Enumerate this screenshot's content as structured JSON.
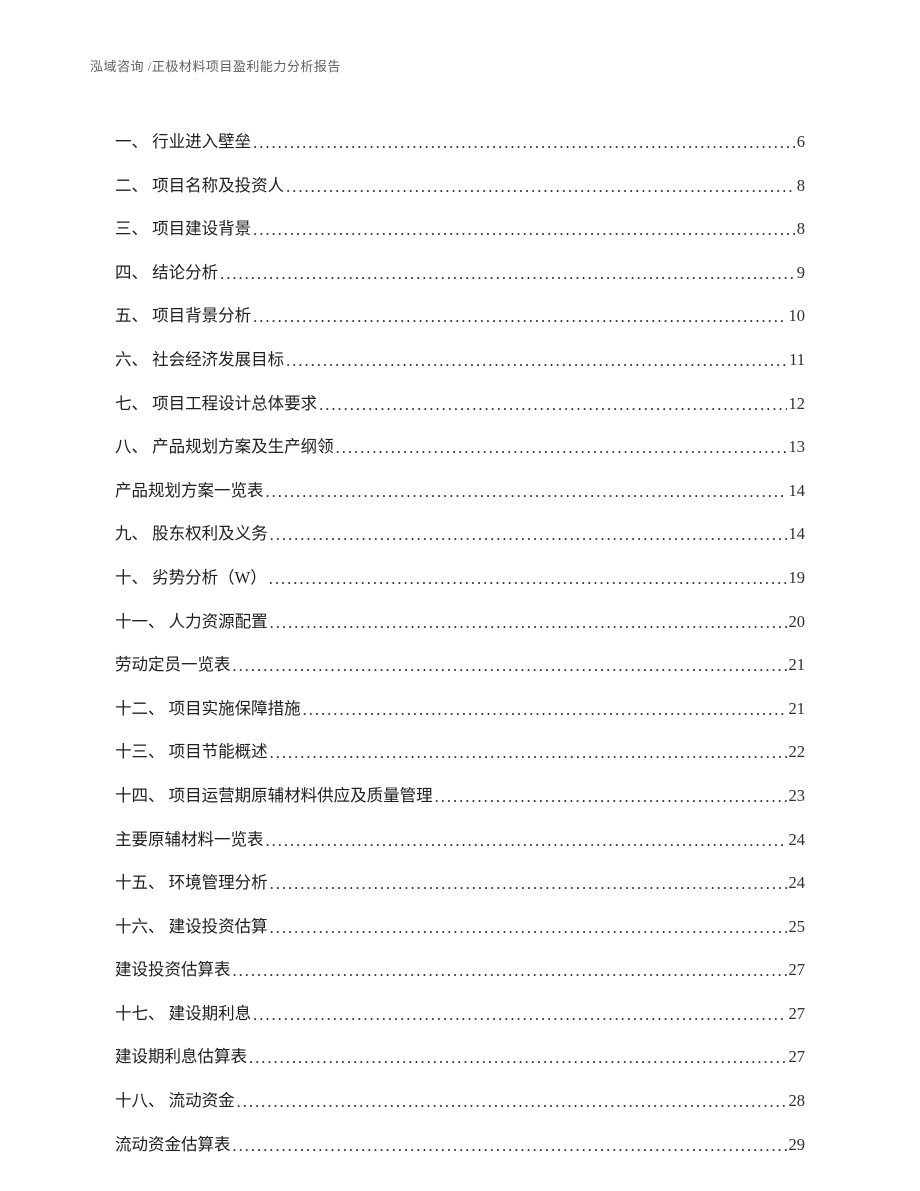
{
  "header": {
    "text": "泓域咨询 /正极材料项目盈利能力分析报告"
  },
  "toc": [
    {
      "label": "一、 行业进入壁垒",
      "page": "6"
    },
    {
      "label": "二、 项目名称及投资人",
      "page": "8"
    },
    {
      "label": "三、 项目建设背景",
      "page": "8"
    },
    {
      "label": "四、 结论分析",
      "page": "9"
    },
    {
      "label": "五、 项目背景分析",
      "page": "10"
    },
    {
      "label": "六、 社会经济发展目标",
      "page": "11"
    },
    {
      "label": "七、 项目工程设计总体要求",
      "page": "12"
    },
    {
      "label": "八、 产品规划方案及生产纲领",
      "page": "13"
    },
    {
      "label": "产品规划方案一览表",
      "page": "14"
    },
    {
      "label": "九、 股东权利及义务",
      "page": "14"
    },
    {
      "label": "十、 劣势分析（W）",
      "page": "19"
    },
    {
      "label": "十一、 人力资源配置",
      "page": "20"
    },
    {
      "label": "劳动定员一览表",
      "page": "21"
    },
    {
      "label": "十二、 项目实施保障措施",
      "page": "21"
    },
    {
      "label": "十三、 项目节能概述",
      "page": "22"
    },
    {
      "label": "十四、 项目运营期原辅材料供应及质量管理",
      "page": "23"
    },
    {
      "label": "主要原辅材料一览表",
      "page": "24"
    },
    {
      "label": "十五、 环境管理分析",
      "page": "24"
    },
    {
      "label": "十六、 建设投资估算",
      "page": "25"
    },
    {
      "label": "建设投资估算表",
      "page": "27"
    },
    {
      "label": "十七、 建设期利息",
      "page": "27"
    },
    {
      "label": "建设期利息估算表",
      "page": "27"
    },
    {
      "label": "十八、 流动资金",
      "page": "28"
    },
    {
      "label": "流动资金估算表",
      "page": "29"
    }
  ]
}
